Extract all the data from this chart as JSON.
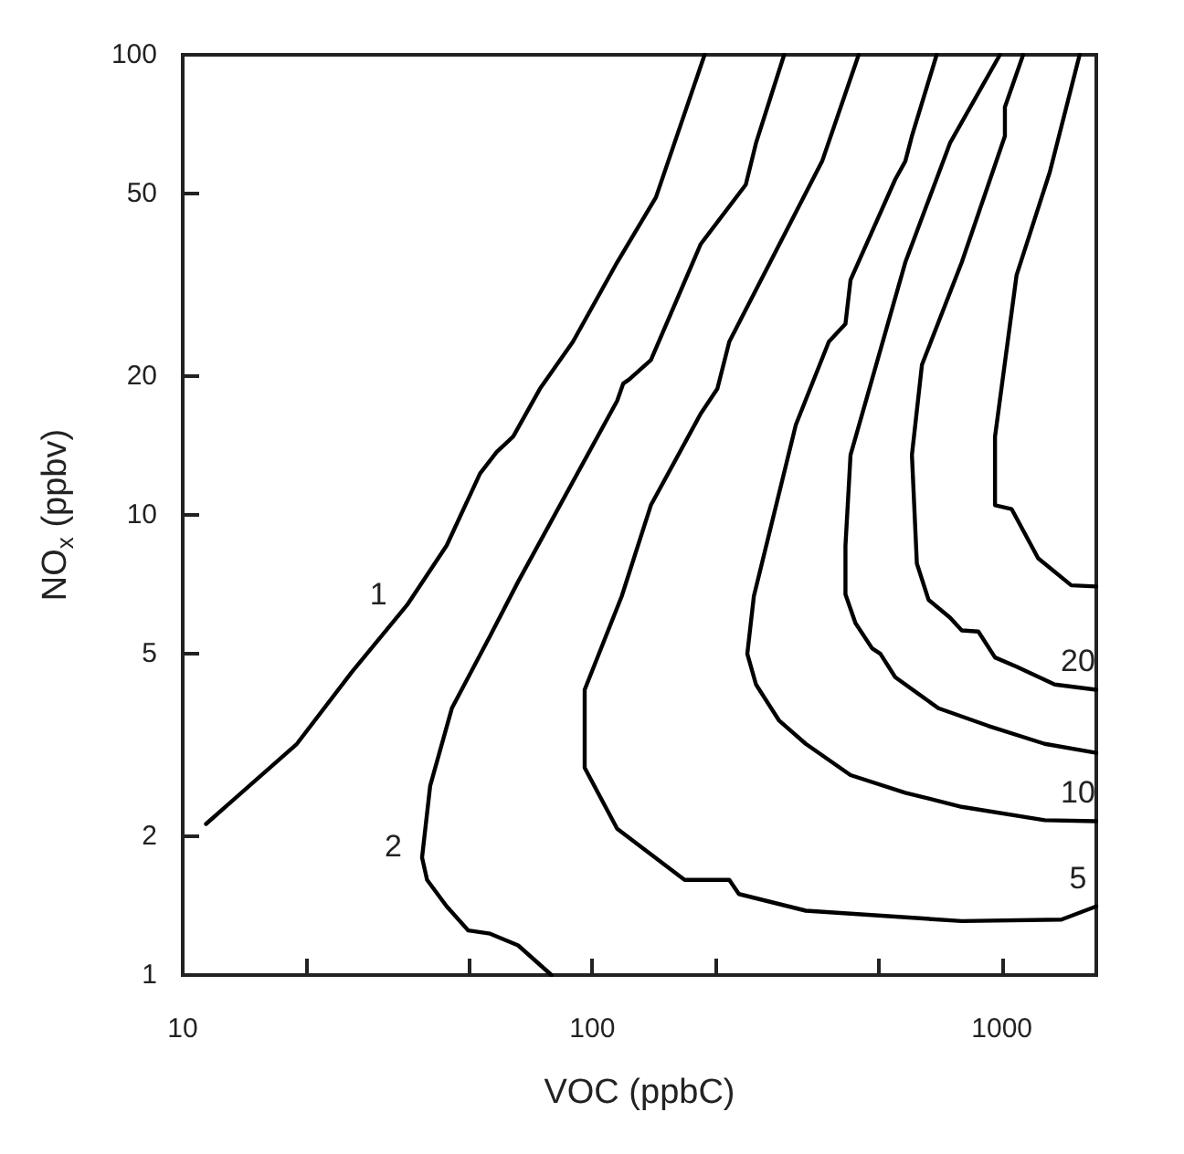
{
  "chart_data": {
    "type": "line",
    "xlabel": "VOC (ppbC)",
    "ylabel": "NO$_{x}$ (ppbv)",
    "log": "xy",
    "marker": "none",
    "grid": false,
    "xlim": [
      10,
      1700
    ],
    "xticks": [
      10,
      {
        "value": 20,
        "label": null
      },
      {
        "value": 50,
        "label": null
      },
      100,
      {
        "value": 200,
        "label": null
      },
      {
        "value": 500,
        "label": null
      },
      1000
    ],
    "ylim": [
      1,
      100
    ],
    "yticks": [
      1,
      2,
      5,
      10,
      20,
      50,
      100
    ],
    "series": [
      {
        "name": "1",
        "color": "#000000",
        "x": [
          11.4,
          19,
          25.9,
          35.3,
          44.1,
          53.2,
          58.4,
          64.1,
          74.5,
          89.7,
          115,
          143,
          188
        ],
        "values": [
          2.13,
          3.18,
          4.56,
          6.37,
          8.58,
          12.3,
          13.7,
          14.8,
          18.8,
          23.8,
          35.4,
          49,
          100
        ]
      },
      {
        "name": "2",
        "color": "#000000",
        "x": [
          294,
          251,
          237,
          184,
          139,
          123,
          119,
          115,
          65.9,
          56.3,
          45.4,
          40.2,
          38.4,
          39.5,
          44.1,
          49.8,
          56.3,
          65.9,
          79.5
        ],
        "values": [
          100,
          64.3,
          52.2,
          38.8,
          21.7,
          19.7,
          19.3,
          17.7,
          7.16,
          5.46,
          3.8,
          2.58,
          1.8,
          1.61,
          1.41,
          1.25,
          1.23,
          1.16,
          1
        ]
      },
      {
        "name": "5",
        "color": "#000000",
        "x": [
          447,
          364,
          216,
          202,
          184,
          139,
          118,
          95.8,
          95.8,
          115,
          168,
          216,
          228,
          332,
          798,
          1397,
          1700
        ],
        "values": [
          100,
          58.7,
          23.8,
          18.8,
          16.6,
          10.5,
          6.66,
          4.17,
          2.82,
          2.08,
          1.61,
          1.61,
          1.5,
          1.38,
          1.31,
          1.32,
          1.41
        ]
      },
      {
        "name": "10",
        "color": "#000000",
        "x": [
          693,
          603,
          581,
          549,
          427,
          415,
          378,
          314,
          248,
          239,
          251,
          286,
          332,
          427,
          581,
          798,
          1272,
          1700
        ],
        "values": [
          100,
          66.6,
          58.7,
          53.6,
          32.4,
          26,
          23.8,
          15.7,
          6.66,
          4.99,
          4.28,
          3.57,
          3.18,
          2.72,
          2.49,
          2.32,
          2.17,
          2.16
        ]
      },
      {
        "color": "#000000",
        "x": [
          989,
          747,
          581,
          427,
          415,
          415,
          439,
          482,
          505,
          549,
          700,
          926,
          1272,
          1700
        ],
        "values": [
          100,
          64.3,
          35.4,
          13.5,
          8.58,
          6.72,
          5.82,
          5.13,
          4.99,
          4.44,
          3.8,
          3.48,
          3.18,
          3.04
        ]
      },
      {
        "name": "20",
        "color": "#000000",
        "x": [
          1127,
          1017,
          1017,
          798,
          638,
          603,
          620,
          662,
          747,
          798,
          876,
          962,
          1086,
          1346,
          1700
        ],
        "values": [
          100,
          77,
          66.6,
          35.4,
          21.2,
          13.5,
          7.84,
          6.54,
          5.98,
          5.61,
          5.58,
          4.9,
          4.68,
          4.28,
          4.17
        ]
      },
      {
        "color": "#000000",
        "x": [
          1548,
          1309,
          1086,
          962,
          962,
          1056,
          1226,
          1477,
          1700
        ],
        "values": [
          100,
          55.6,
          33.2,
          14.8,
          10.5,
          10.3,
          8.05,
          7.03,
          6.99
        ]
      }
    ]
  }
}
